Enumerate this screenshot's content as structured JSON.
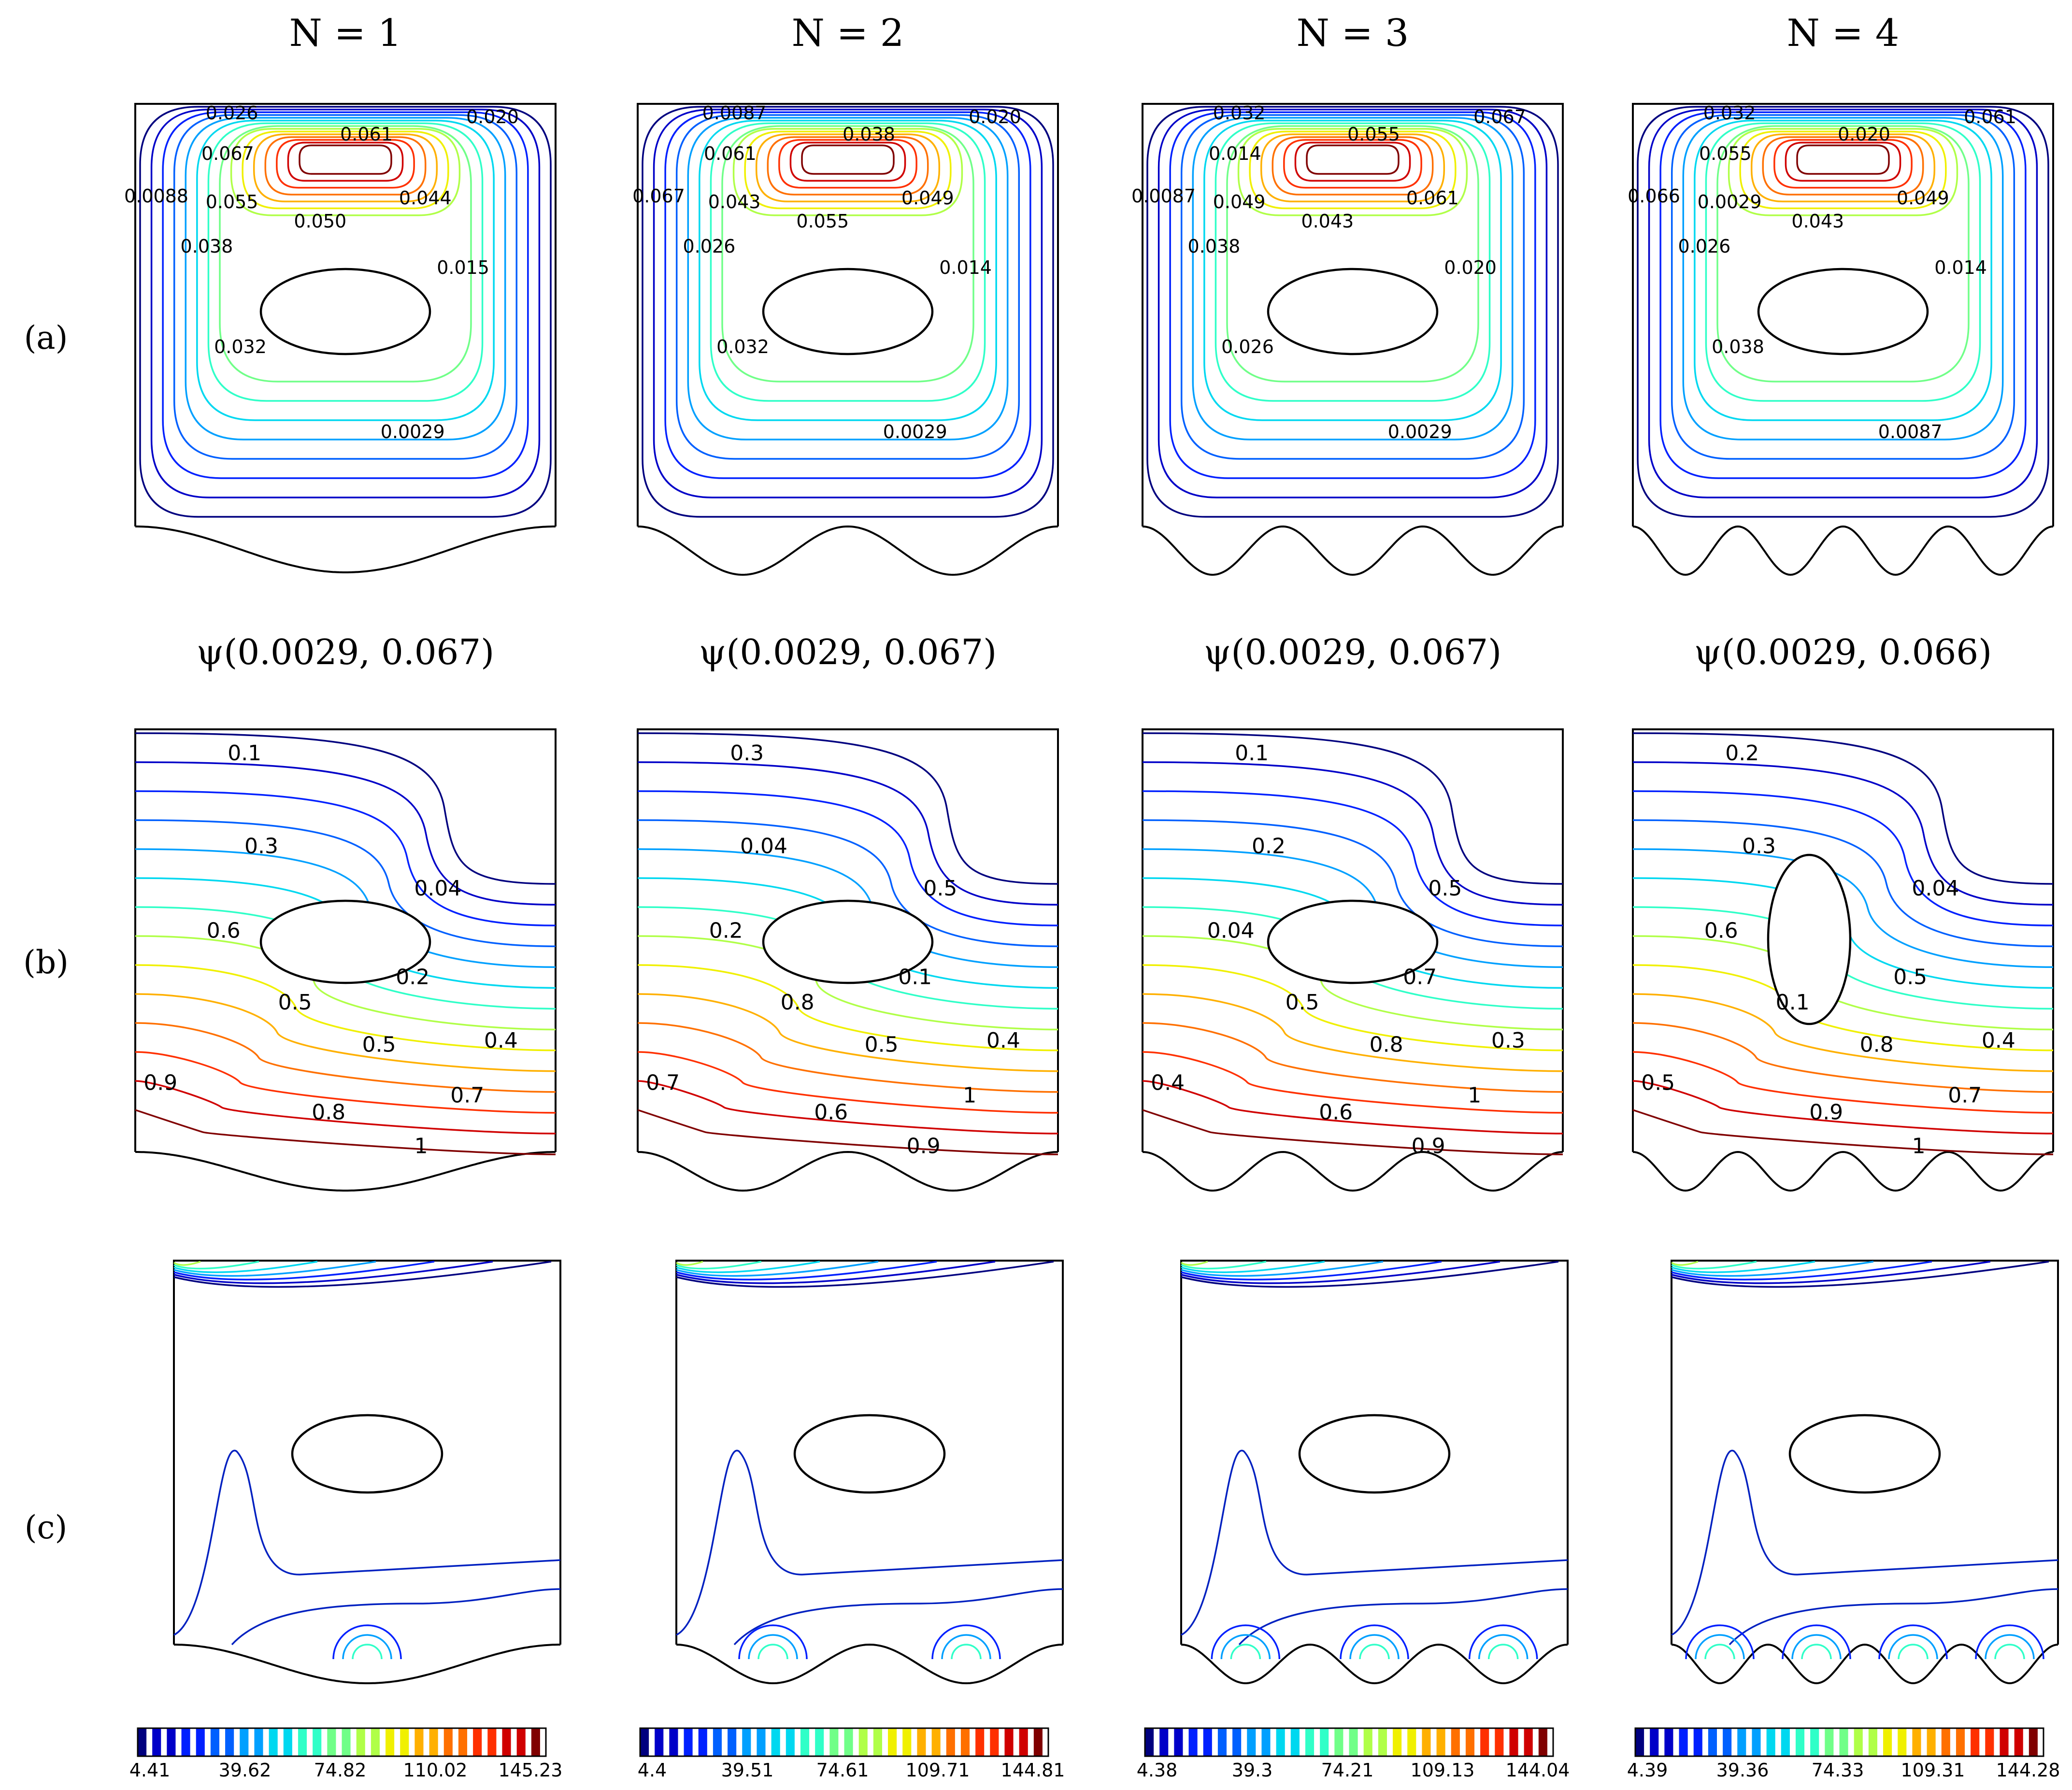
{
  "figure": {
    "columns": [
      {
        "title": "N = 1",
        "n": 1,
        "psi_label": "ψ(0.0029, 0.067)",
        "colorbar_ticks": [
          "4.41",
          "39.62",
          "74.82",
          "110.02",
          "145.23"
        ],
        "streamline_labels": [
          "0.026",
          "0.061",
          "0.020",
          "0.067",
          "0.0088",
          "0.044",
          "0.055",
          "0.050",
          "0.038",
          "0.015",
          "0.032",
          "0.0029"
        ],
        "isotherm_labels": [
          "0.1",
          "0.3",
          "0.04",
          "0.6",
          "0.2",
          "0.5",
          "0.5",
          "0.4",
          "0.9",
          "0.8",
          "0.7",
          "1"
        ]
      },
      {
        "title": "N = 2",
        "n": 2,
        "psi_label": "ψ(0.0029, 0.067)",
        "colorbar_ticks": [
          "4.4",
          "39.51",
          "74.61",
          "109.71",
          "144.81"
        ],
        "streamline_labels": [
          "0.0087",
          "0.038",
          "0.020",
          "0.061",
          "0.067",
          "0.049",
          "0.043",
          "0.055",
          "0.026",
          "0.014",
          "0.032",
          "0.0029"
        ],
        "isotherm_labels": [
          "0.3",
          "0.04",
          "0.5",
          "0.2",
          "0.1",
          "0.8",
          "0.5",
          "0.4",
          "0.7",
          "0.6",
          "1",
          "0.9"
        ]
      },
      {
        "title": "N = 3",
        "n": 3,
        "psi_label": "ψ(0.0029, 0.067)",
        "colorbar_ticks": [
          "4.38",
          "39.3",
          "74.21",
          "109.13",
          "144.04"
        ],
        "streamline_labels": [
          "0.032",
          "0.055",
          "0.067",
          "0.014",
          "0.0087",
          "0.061",
          "0.049",
          "0.043",
          "0.038",
          "0.020",
          "0.026",
          "0.0029"
        ],
        "isotherm_labels": [
          "0.1",
          "0.2",
          "0.5",
          "0.04",
          "0.7",
          "0.5",
          "0.8",
          "0.3",
          "0.4",
          "0.6",
          "1",
          "0.9"
        ]
      },
      {
        "title": "N = 4",
        "n": 4,
        "psi_label": "ψ(0.0029, 0.066)",
        "colorbar_ticks": [
          "4.39",
          "39.36",
          "74.33",
          "109.31",
          "144.28"
        ],
        "streamline_labels": [
          "0.032",
          "0.020",
          "0.061",
          "0.055",
          "0.066",
          "0.049",
          "0.0029",
          "0.043",
          "0.026",
          "0.014",
          "0.038",
          "0.0087"
        ],
        "isotherm_labels": [
          "0.2",
          "0.3",
          "0.04",
          "0.6",
          "0.5",
          "0.1",
          "0.8",
          "0.4",
          "0.5",
          "0.9",
          "0.7",
          "1"
        ]
      }
    ],
    "row_labels": {
      "a": "(a)",
      "b": "(b)",
      "c": "(c)"
    },
    "colors": {
      "jet": [
        "#00007f",
        "#0000c8",
        "#0020ff",
        "#0060ff",
        "#00a0ff",
        "#00d8f0",
        "#30ffc8",
        "#70ff88",
        "#b0ff48",
        "#f0f000",
        "#ffb000",
        "#ff7000",
        "#ff3000",
        "#d00000",
        "#800000"
      ],
      "frame": "#000000"
    }
  }
}
